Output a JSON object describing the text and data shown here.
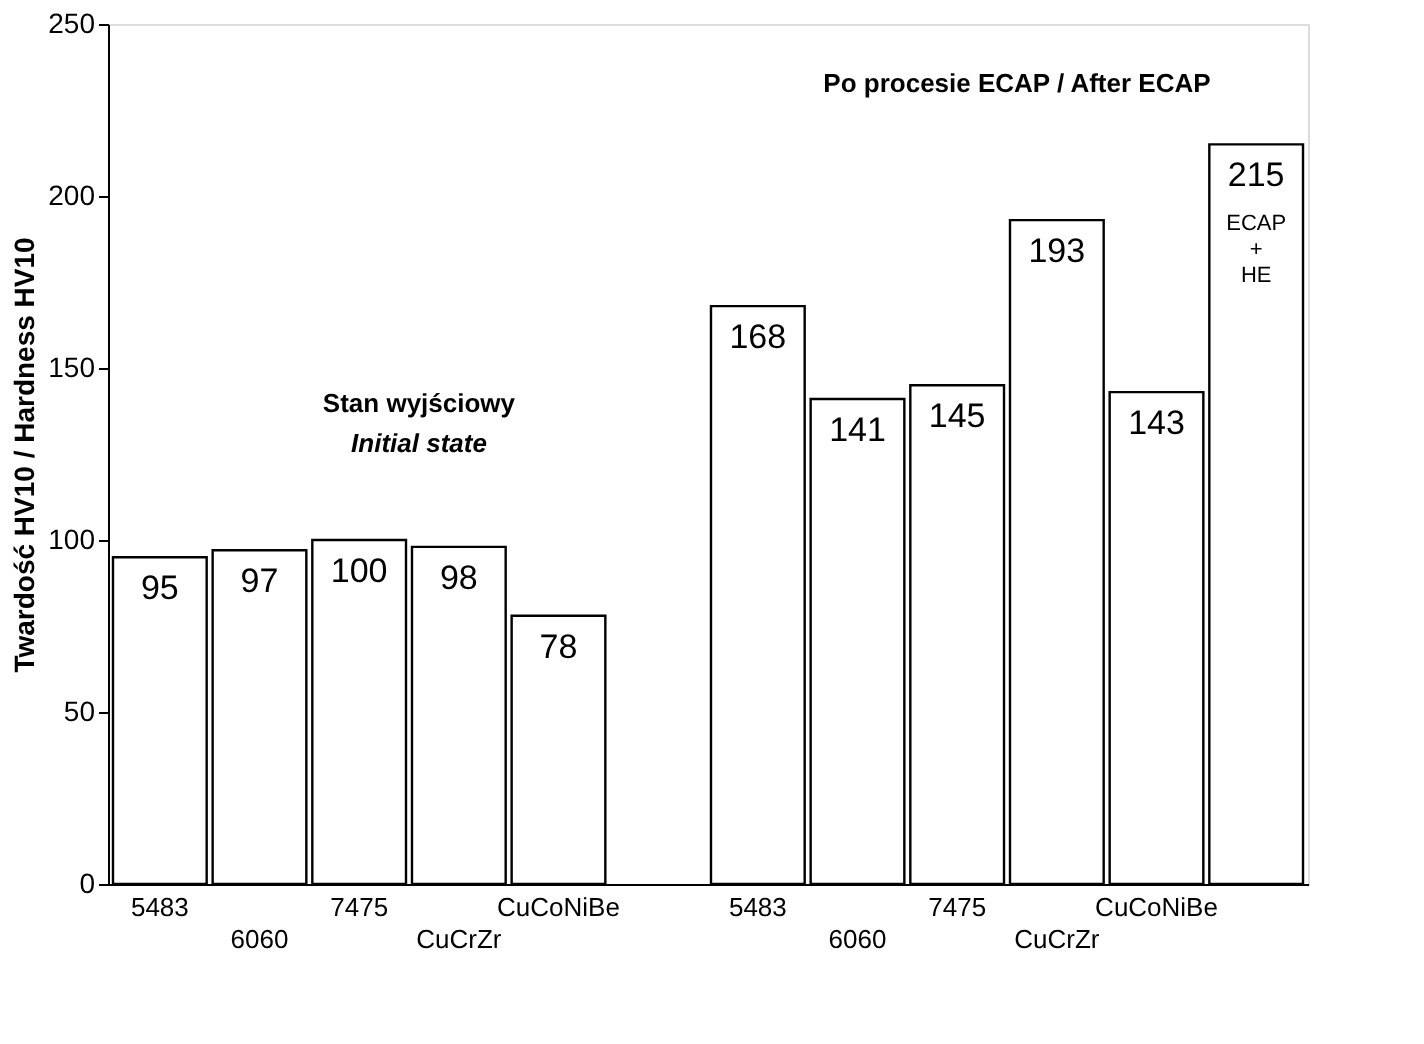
{
  "chart_data": {
    "type": "bar",
    "ylabel": "Twardość HV10 / Hardness HV10",
    "categories": [
      "5483",
      "6060",
      "7475",
      "CuCrZr",
      "CuCoNiBe",
      null,
      "5483",
      "6060",
      "7475",
      "CuCrZr",
      "CuCoNiBe",
      null
    ],
    "values": [
      95,
      97,
      100,
      98,
      78,
      null,
      168,
      141,
      145,
      193,
      143,
      215
    ],
    "color": "#ffffff",
    "ylim": [
      0,
      250
    ],
    "yticks": [
      0,
      50,
      100,
      150,
      200,
      250
    ],
    "data_labels": true,
    "annotations": [
      "Stan wyjściowy",
      "Initial state",
      "Po procesie ECAP / After ECAP",
      "ECAP + HE"
    ]
  }
}
